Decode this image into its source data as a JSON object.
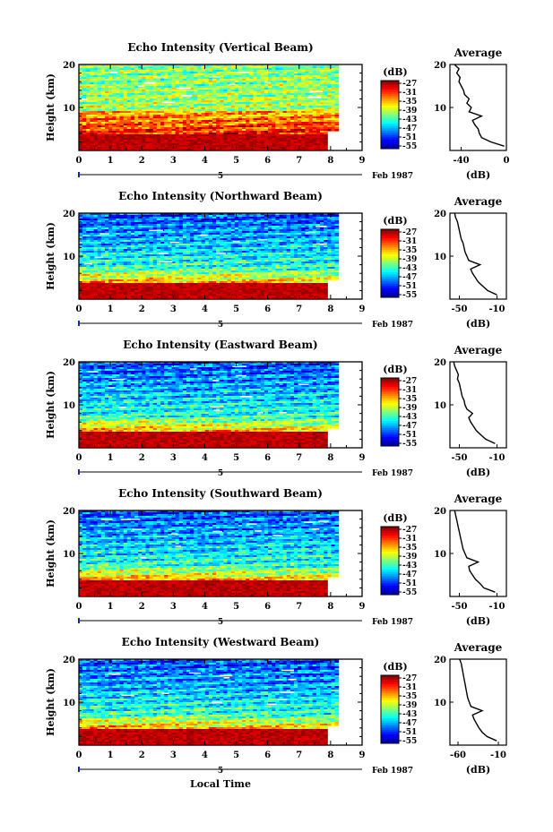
{
  "figure": {
    "xlabel": "Local Time",
    "date_label": "Feb 1987",
    "date_day": "5"
  },
  "chart_data": [
    {
      "type": "heatmap",
      "title": "Echo Intensity (Vertical Beam)",
      "xlabel": "",
      "ylabel": "Height (km)",
      "x_ticks": [
        "0",
        "1",
        "2",
        "3",
        "4",
        "5",
        "6",
        "7",
        "8",
        "9"
      ],
      "xlim": [
        0,
        9
      ],
      "y_ticks": [
        "10",
        "20"
      ],
      "ylim": [
        0,
        20
      ],
      "data_end_time": 8.25,
      "colorbar": {
        "unit": "(dB)",
        "labels": [
          "-27",
          "-31",
          "-35",
          "-39",
          "-43",
          "-47",
          "-51",
          "-55"
        ]
      },
      "average_profile": {
        "title": "Average",
        "xlabel": "(dB)",
        "x_ticks": [
          "-40",
          "0"
        ],
        "xlim": [
          -50,
          0
        ],
        "y_ticks": [
          "10",
          "20"
        ],
        "height_km": [
          1,
          2,
          3,
          4,
          5,
          6,
          7,
          8,
          9,
          10,
          11,
          12,
          13,
          14,
          15,
          16,
          17,
          18,
          19,
          20
        ],
        "db": [
          -2,
          -14,
          -22,
          -24,
          -25,
          -28,
          -30,
          -22,
          -33,
          -31,
          -35,
          -33,
          -37,
          -38,
          -40,
          -42,
          -41,
          -44,
          -42,
          -46
        ]
      }
    },
    {
      "type": "heatmap",
      "title": "Echo Intensity (Northward Beam)",
      "xlabel": "",
      "ylabel": "Height (km)",
      "x_ticks": [
        "0",
        "1",
        "2",
        "3",
        "4",
        "5",
        "6",
        "7",
        "8",
        "9"
      ],
      "xlim": [
        0,
        9
      ],
      "y_ticks": [
        "10",
        "20"
      ],
      "ylim": [
        0,
        20
      ],
      "data_end_time": 8.25,
      "colorbar": {
        "unit": "(dB)",
        "labels": [
          "-27",
          "-31",
          "-35",
          "-39",
          "-43",
          "-47",
          "-51",
          "-55"
        ]
      },
      "average_profile": {
        "title": "Average",
        "xlabel": "(dB)",
        "x_ticks": [
          "-50",
          "-10"
        ],
        "xlim": [
          -60,
          0
        ],
        "y_ticks": [
          "10",
          "20"
        ],
        "height_km": [
          1,
          2,
          3,
          4,
          5,
          6,
          7,
          8,
          9,
          10,
          11,
          12,
          13,
          14,
          15,
          16,
          17,
          18,
          19,
          20
        ],
        "db": [
          -10,
          -20,
          -25,
          -30,
          -33,
          -36,
          -38,
          -28,
          -40,
          -42,
          -44,
          -45,
          -46,
          -48,
          -49,
          -50,
          -51,
          -52,
          -54,
          -55
        ]
      }
    },
    {
      "type": "heatmap",
      "title": "Echo Intensity (Eastward Beam)",
      "xlabel": "",
      "ylabel": "Height (km)",
      "x_ticks": [
        "0",
        "1",
        "2",
        "3",
        "4",
        "5",
        "6",
        "7",
        "8",
        "9"
      ],
      "xlim": [
        0,
        9
      ],
      "y_ticks": [
        "10",
        "20"
      ],
      "ylim": [
        0,
        20
      ],
      "data_end_time": 8.25,
      "colorbar": {
        "unit": "(dB)",
        "labels": [
          "-27",
          "-31",
          "-35",
          "-39",
          "-43",
          "-47",
          "-51",
          "-55"
        ]
      },
      "average_profile": {
        "title": "Average",
        "xlabel": "(dB)",
        "x_ticks": [
          "-50",
          "-10"
        ],
        "xlim": [
          -60,
          0
        ],
        "y_ticks": [
          "10",
          "20"
        ],
        "height_km": [
          1,
          2,
          3,
          4,
          5,
          6,
          7,
          8,
          9,
          10,
          11,
          12,
          13,
          14,
          15,
          16,
          17,
          18,
          19,
          20
        ],
        "db": [
          -12,
          -22,
          -27,
          -32,
          -35,
          -38,
          -40,
          -36,
          -42,
          -44,
          -45,
          -47,
          -48,
          -49,
          -50,
          -52,
          -51,
          -53,
          -55,
          -56
        ]
      }
    },
    {
      "type": "heatmap",
      "title": "Echo Intensity (Southward Beam)",
      "xlabel": "",
      "ylabel": "Height (km)",
      "x_ticks": [
        "0",
        "1",
        "2",
        "3",
        "4",
        "5",
        "6",
        "7",
        "8",
        "9"
      ],
      "xlim": [
        0,
        9
      ],
      "y_ticks": [
        "10",
        "20"
      ],
      "ylim": [
        0,
        20
      ],
      "data_end_time": 8.25,
      "colorbar": {
        "unit": "(dB)",
        "labels": [
          "-27",
          "-31",
          "-35",
          "-39",
          "-43",
          "-47",
          "-51",
          "-55"
        ]
      },
      "average_profile": {
        "title": "Average",
        "xlabel": "(dB)",
        "x_ticks": [
          "-50",
          "-10"
        ],
        "xlim": [
          -60,
          0
        ],
        "y_ticks": [
          "10",
          "20"
        ],
        "height_km": [
          1,
          2,
          3,
          4,
          5,
          6,
          7,
          8,
          9,
          10,
          11,
          12,
          13,
          14,
          15,
          16,
          17,
          18,
          19,
          20
        ],
        "db": [
          -12,
          -24,
          -28,
          -33,
          -36,
          -39,
          -40,
          -30,
          -42,
          -44,
          -46,
          -47,
          -48,
          -49,
          -50,
          -51,
          -52,
          -53,
          -54,
          -55
        ]
      }
    },
    {
      "type": "heatmap",
      "title": "Echo Intensity (Westward Beam)",
      "xlabel": "Local Time",
      "ylabel": "Height (km)",
      "x_ticks": [
        "0",
        "1",
        "2",
        "3",
        "4",
        "5",
        "6",
        "7",
        "8",
        "9"
      ],
      "xlim": [
        0,
        9
      ],
      "y_ticks": [
        "10",
        "20"
      ],
      "ylim": [
        0,
        20
      ],
      "data_end_time": 8.25,
      "colorbar": {
        "unit": "(dB)",
        "labels": [
          "-27",
          "-31",
          "-35",
          "-39",
          "-43",
          "-47",
          "-51",
          "-55"
        ]
      },
      "average_profile": {
        "title": "Average",
        "xlabel": "(dB)",
        "x_ticks": [
          "-60",
          "-10"
        ],
        "xlim": [
          -70,
          0
        ],
        "y_ticks": [
          "10",
          "20"
        ],
        "height_km": [
          1,
          2,
          3,
          4,
          5,
          6,
          7,
          8,
          9,
          10,
          11,
          12,
          13,
          14,
          15,
          16,
          17,
          18,
          19,
          20
        ],
        "db": [
          -12,
          -24,
          -30,
          -34,
          -37,
          -40,
          -42,
          -30,
          -44,
          -46,
          -48,
          -49,
          -50,
          -51,
          -52,
          -53,
          -54,
          -55,
          -56,
          -58
        ]
      }
    }
  ]
}
